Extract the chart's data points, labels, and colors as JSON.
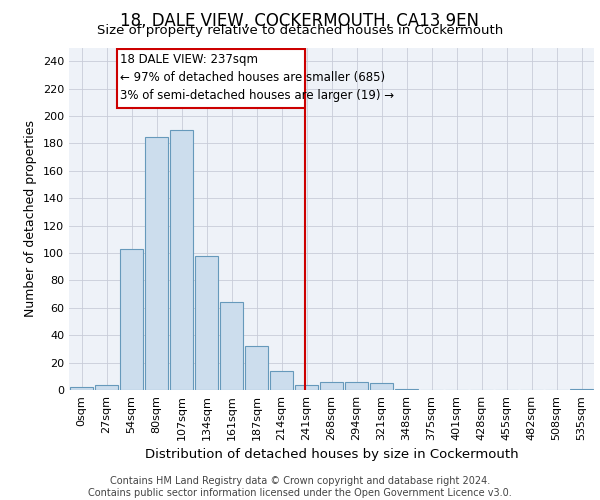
{
  "title": "18, DALE VIEW, COCKERMOUTH, CA13 9EN",
  "subtitle": "Size of property relative to detached houses in Cockermouth",
  "xlabel": "Distribution of detached houses by size in Cockermouth",
  "ylabel": "Number of detached properties",
  "bar_labels": [
    "0sqm",
    "27sqm",
    "54sqm",
    "80sqm",
    "107sqm",
    "134sqm",
    "161sqm",
    "187sqm",
    "214sqm",
    "241sqm",
    "268sqm",
    "294sqm",
    "321sqm",
    "348sqm",
    "375sqm",
    "401sqm",
    "428sqm",
    "455sqm",
    "482sqm",
    "508sqm",
    "535sqm"
  ],
  "bar_values": [
    2,
    4,
    103,
    185,
    190,
    98,
    64,
    32,
    14,
    4,
    6,
    6,
    5,
    1,
    0,
    0,
    0,
    0,
    0,
    0,
    1
  ],
  "bar_color": "#ccdded",
  "bar_edge_color": "#6699bb",
  "marker_line_color": "#cc0000",
  "annotation_line1": "18 DALE VIEW: 237sqm",
  "annotation_line2": "← 97% of detached houses are smaller (685)",
  "annotation_line3": "3% of semi-detached houses are larger (19) →",
  "annotation_box_color": "#cc0000",
  "ylim": [
    0,
    250
  ],
  "yticks": [
    0,
    20,
    40,
    60,
    80,
    100,
    120,
    140,
    160,
    180,
    200,
    220,
    240
  ],
  "footer_text": "Contains HM Land Registry data © Crown copyright and database right 2024.\nContains public sector information licensed under the Open Government Licence v3.0.",
  "bg_color": "#eef2f8",
  "grid_color": "#c8ccd8",
  "title_fontsize": 12,
  "subtitle_fontsize": 9.5,
  "xlabel_fontsize": 9.5,
  "ylabel_fontsize": 9,
  "tick_fontsize": 8,
  "annotation_fontsize": 8.5,
  "footer_fontsize": 7
}
